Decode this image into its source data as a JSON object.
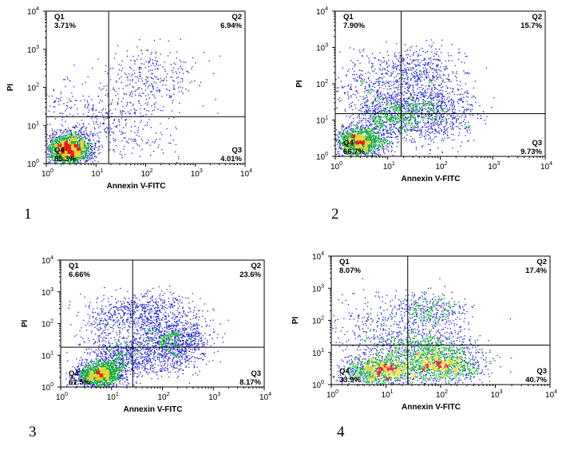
{
  "chart_data": [
    {
      "type": "scatter",
      "panel_label": "1",
      "xlabel": "Annexin V-FITC",
      "ylabel": "PI",
      "x_scale": "log",
      "y_scale": "log",
      "xlim": [
        1,
        10000
      ],
      "ylim": [
        1,
        10000
      ],
      "x_ticks": [
        {
          "base": "10",
          "exp": "0"
        },
        {
          "base": "10",
          "exp": "1"
        },
        {
          "base": "10",
          "exp": "2"
        },
        {
          "base": "10",
          "exp": "3"
        },
        {
          "base": "10",
          "exp": "4"
        }
      ],
      "y_ticks": [
        {
          "base": "10",
          "exp": "0"
        },
        {
          "base": "10",
          "exp": "1"
        },
        {
          "base": "10",
          "exp": "2"
        },
        {
          "base": "10",
          "exp": "3"
        },
        {
          "base": "10",
          "exp": "4"
        }
      ],
      "gate": {
        "x": 18,
        "y": 17
      },
      "quadrants": [
        {
          "id": "Q1",
          "name": "Q1",
          "value": "3.71%"
        },
        {
          "id": "Q2",
          "name": "Q2",
          "value": 6.94,
          "value_text": "6.94%"
        },
        {
          "id": "Q3",
          "name": "Q3",
          "value": 4.01,
          "value_text": "4.01%"
        },
        {
          "id": "Q4",
          "name": "Q4",
          "value": 85.3,
          "value_text": "85.3%"
        }
      ],
      "populations": [
        {
          "cx": 0.45,
          "cy": 0.4,
          "sx": 0.24,
          "sy": 0.22,
          "n": 1900
        },
        {
          "cx": 2.1,
          "cy": 2.2,
          "sx": 0.45,
          "sy": 0.45,
          "n": 330
        },
        {
          "cx": 1.1,
          "cy": 1.2,
          "sx": 0.4,
          "sy": 0.35,
          "n": 220
        },
        {
          "cx": 0.3,
          "cy": 1.6,
          "sx": 0.3,
          "sy": 0.4,
          "n": 80
        },
        {
          "cx": 1.9,
          "cy": 0.7,
          "sx": 0.5,
          "sy": 0.35,
          "n": 90
        }
      ]
    },
    {
      "type": "scatter",
      "panel_label": "2",
      "xlabel": "Annexin V-FITC",
      "ylabel": "PI",
      "x_scale": "log",
      "y_scale": "log",
      "xlim": [
        1,
        10000
      ],
      "ylim": [
        1,
        10000
      ],
      "x_ticks": [
        {
          "base": "10",
          "exp": "0"
        },
        {
          "base": "10",
          "exp": "1"
        },
        {
          "base": "10",
          "exp": "2"
        },
        {
          "base": "10",
          "exp": "3"
        },
        {
          "base": "10",
          "exp": "4"
        }
      ],
      "y_ticks": [
        {
          "base": "10",
          "exp": "0"
        },
        {
          "base": "10",
          "exp": "1"
        },
        {
          "base": "10",
          "exp": "2"
        },
        {
          "base": "10",
          "exp": "3"
        },
        {
          "base": "10",
          "exp": "4"
        }
      ],
      "gate": {
        "x": 18,
        "y": 15
      },
      "quadrants": [
        {
          "id": "Q1",
          "name": "Q1",
          "value": 7.9,
          "value_text": "7.90%"
        },
        {
          "id": "Q2",
          "name": "Q2",
          "value": 15.7,
          "value_text": "15.7%"
        },
        {
          "id": "Q3",
          "name": "Q3",
          "value": 9.73,
          "value_text": "9.73%"
        },
        {
          "id": "Q4",
          "name": "Q4",
          "value": 66.7,
          "value_text": "66.7%"
        }
      ],
      "populations": [
        {
          "cx": 0.45,
          "cy": 0.4,
          "sx": 0.25,
          "sy": 0.22,
          "n": 1500
        },
        {
          "cx": 1.0,
          "cy": 1.05,
          "sx": 0.3,
          "sy": 0.3,
          "n": 550
        },
        {
          "cx": 1.7,
          "cy": 1.3,
          "sx": 0.45,
          "sy": 0.35,
          "n": 900
        },
        {
          "cx": 1.5,
          "cy": 2.3,
          "sx": 0.5,
          "sy": 0.35,
          "n": 550
        },
        {
          "cx": 0.6,
          "cy": 1.8,
          "sx": 0.3,
          "sy": 0.45,
          "n": 250
        },
        {
          "cx": 2.0,
          "cy": 0.8,
          "sx": 0.4,
          "sy": 0.3,
          "n": 160
        }
      ]
    },
    {
      "type": "scatter",
      "panel_label": "3",
      "xlabel": "Annexin V-FITC",
      "ylabel": "PI",
      "x_scale": "log",
      "y_scale": "log",
      "xlim": [
        1,
        10000
      ],
      "ylim": [
        1,
        10000
      ],
      "x_ticks": [
        {
          "base": "10",
          "exp": "0"
        },
        {
          "base": "10",
          "exp": "1"
        },
        {
          "base": "10",
          "exp": "2"
        },
        {
          "base": "10",
          "exp": "3"
        },
        {
          "base": "10",
          "exp": "4"
        }
      ],
      "y_ticks": [
        {
          "base": "10",
          "exp": "0"
        },
        {
          "base": "10",
          "exp": "1"
        },
        {
          "base": "10",
          "exp": "2"
        },
        {
          "base": "10",
          "exp": "3"
        },
        {
          "base": "10",
          "exp": "4"
        }
      ],
      "gate": {
        "x": 26,
        "y": 18
      },
      "quadrants": [
        {
          "id": "Q1",
          "name": "Q1",
          "value": 6.66,
          "value_text": "6.66%"
        },
        {
          "id": "Q2",
          "name": "Q2",
          "value": 23.6,
          "value_text": "23.6%"
        },
        {
          "id": "Q3",
          "name": "Q3",
          "value": 8.17,
          "value_text": "8.17%"
        },
        {
          "id": "Q4",
          "name": "Q4",
          "value": 61.5,
          "value_text": "61.5%"
        }
      ],
      "populations": [
        {
          "cx": 0.75,
          "cy": 0.4,
          "sx": 0.25,
          "sy": 0.22,
          "n": 1400
        },
        {
          "cx": 1.2,
          "cy": 0.95,
          "sx": 0.3,
          "sy": 0.3,
          "n": 600
        },
        {
          "cx": 2.2,
          "cy": 1.5,
          "sx": 0.35,
          "sy": 0.35,
          "n": 1000
        },
        {
          "cx": 1.6,
          "cy": 2.4,
          "sx": 0.5,
          "sy": 0.3,
          "n": 550
        },
        {
          "cx": 0.9,
          "cy": 1.8,
          "sx": 0.35,
          "sy": 0.45,
          "n": 200
        },
        {
          "cx": 2.1,
          "cy": 0.8,
          "sx": 0.35,
          "sy": 0.3,
          "n": 180
        }
      ]
    },
    {
      "type": "scatter",
      "panel_label": "4",
      "xlabel": "Annexin V-FITC",
      "ylabel": "PI",
      "x_scale": "log",
      "y_scale": "log",
      "xlim": [
        1,
        10000
      ],
      "ylim": [
        1,
        10000
      ],
      "x_ticks": [
        {
          "base": "10",
          "exp": "0"
        },
        {
          "base": "10",
          "exp": "1"
        },
        {
          "base": "10",
          "exp": "2"
        },
        {
          "base": "10",
          "exp": "3"
        },
        {
          "base": "10",
          "exp": "4"
        }
      ],
      "y_ticks": [
        {
          "base": "10",
          "exp": "0"
        },
        {
          "base": "10",
          "exp": "1"
        },
        {
          "base": "10",
          "exp": "2"
        },
        {
          "base": "10",
          "exp": "3"
        },
        {
          "base": "10",
          "exp": "4"
        }
      ],
      "gate": {
        "x": 25,
        "y": 17
      },
      "quadrants": [
        {
          "id": "Q1",
          "name": "Q1",
          "value": 8.07,
          "value_text": "8.07%"
        },
        {
          "id": "Q2",
          "name": "Q2",
          "value": 17.4,
          "value_text": "17.4%"
        },
        {
          "id": "Q3",
          "name": "Q3",
          "value": 40.7,
          "value_text": "40.7%"
        },
        {
          "id": "Q4",
          "name": "Q4",
          "value": 33.9,
          "value_text": "33.9%"
        }
      ],
      "populations": [
        {
          "cx": 0.9,
          "cy": 0.45,
          "sx": 0.35,
          "sy": 0.25,
          "n": 1100
        },
        {
          "cx": 2.0,
          "cy": 0.6,
          "sx": 0.4,
          "sy": 0.3,
          "n": 1100
        },
        {
          "cx": 1.6,
          "cy": 1.2,
          "sx": 0.5,
          "sy": 0.3,
          "n": 700
        },
        {
          "cx": 1.8,
          "cy": 2.3,
          "sx": 0.35,
          "sy": 0.3,
          "n": 450
        },
        {
          "cx": 0.8,
          "cy": 1.9,
          "sx": 0.4,
          "sy": 0.45,
          "n": 250
        }
      ]
    }
  ],
  "colors": {
    "sparse": "#1b1bd6",
    "mid": "#14a83a",
    "high": "#e8d21c",
    "peak": "#e51c1c",
    "gate_line": "#000000",
    "axis": "#000000",
    "q4_highlight": "#bfe6ea"
  }
}
